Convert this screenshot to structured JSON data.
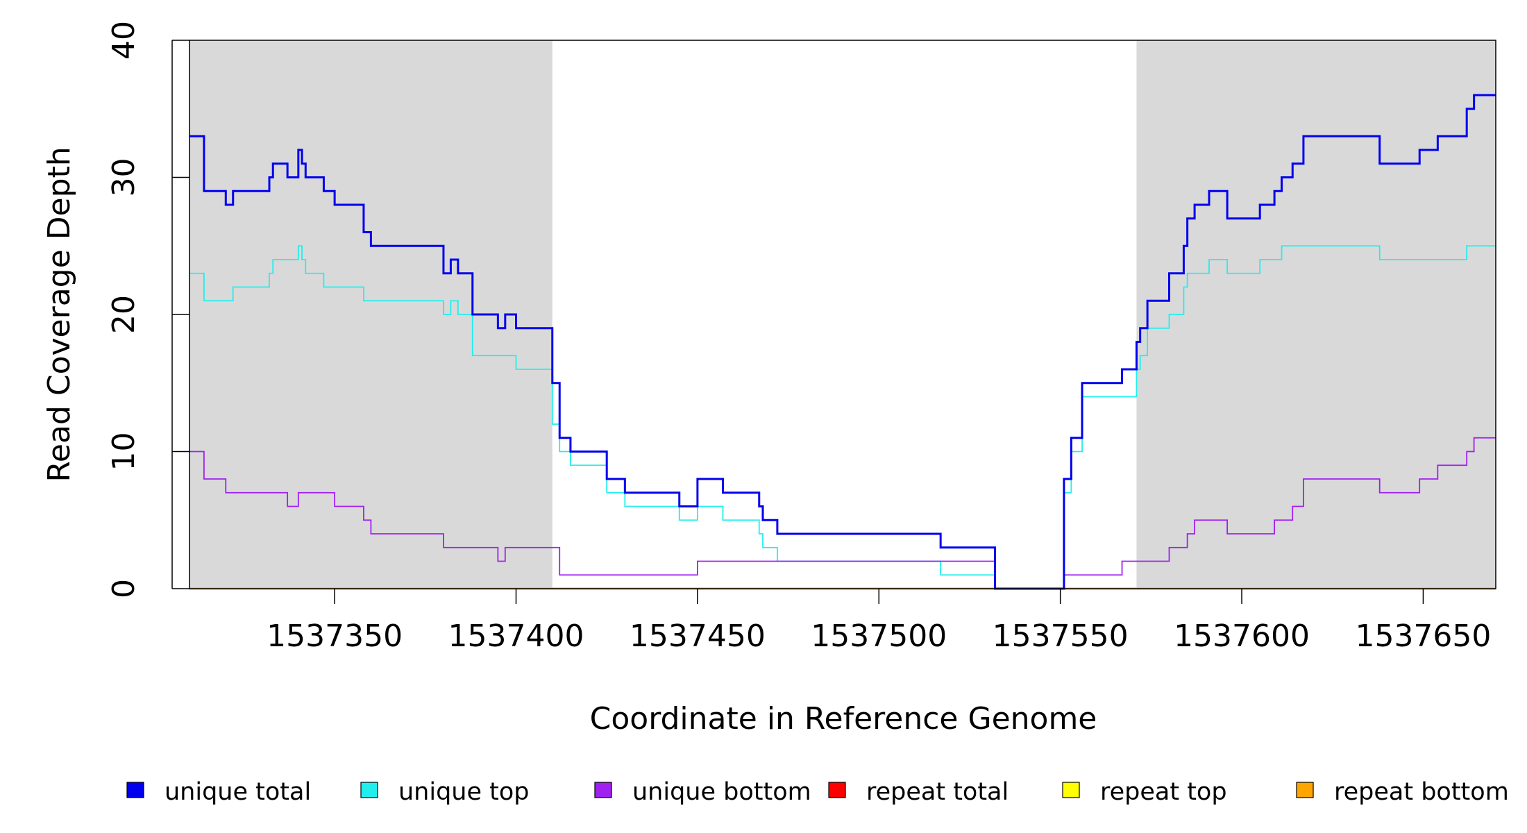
{
  "chart_data": {
    "type": "line",
    "step": true,
    "xlabel": "Coordinate in Reference Genome",
    "ylabel": "Read Coverage Depth",
    "xlim": [
      1537310,
      1537670
    ],
    "ylim": [
      0,
      40
    ],
    "x_ticks": [
      1537350,
      1537400,
      1537450,
      1537500,
      1537550,
      1537600,
      1537650
    ],
    "x_tick_labels": [
      "1537350",
      "1537400",
      "1537450",
      "1537500",
      "1537550",
      "1537600",
      "1537650"
    ],
    "y_ticks": [
      0,
      10,
      20,
      30,
      40
    ],
    "y_tick_labels": [
      "0",
      "10",
      "20",
      "30",
      "40"
    ],
    "shaded_regions": [
      [
        1537310,
        1537410
      ],
      [
        1537571,
        1537670
      ]
    ],
    "shade_color": "#d9d9d9",
    "grid": false,
    "legend_position": "bottom",
    "series": [
      {
        "name": "unique total",
        "color": "#0000ee",
        "points": [
          [
            1537310,
            33
          ],
          [
            1537314,
            29
          ],
          [
            1537320,
            28
          ],
          [
            1537322,
            29
          ],
          [
            1537332,
            30
          ],
          [
            1537333,
            31
          ],
          [
            1537337,
            30
          ],
          [
            1537340,
            32
          ],
          [
            1537341,
            31
          ],
          [
            1537342,
            30
          ],
          [
            1537347,
            29
          ],
          [
            1537350,
            28
          ],
          [
            1537358,
            26
          ],
          [
            1537360,
            25
          ],
          [
            1537380,
            23
          ],
          [
            1537382,
            24
          ],
          [
            1537384,
            23
          ],
          [
            1537388,
            20
          ],
          [
            1537395,
            19
          ],
          [
            1537397,
            20
          ],
          [
            1537400,
            19
          ],
          [
            1537410,
            15
          ],
          [
            1537412,
            11
          ],
          [
            1537415,
            10
          ],
          [
            1537425,
            8
          ],
          [
            1537430,
            7
          ],
          [
            1537445,
            6
          ],
          [
            1537450,
            8
          ],
          [
            1537457,
            7
          ],
          [
            1537467,
            6
          ],
          [
            1537468,
            5
          ],
          [
            1537472,
            4
          ],
          [
            1537517,
            3
          ],
          [
            1537532,
            0
          ],
          [
            1537551,
            8
          ],
          [
            1537553,
            11
          ],
          [
            1537556,
            15
          ],
          [
            1537567,
            16
          ],
          [
            1537571,
            18
          ],
          [
            1537572,
            19
          ],
          [
            1537574,
            21
          ],
          [
            1537580,
            23
          ],
          [
            1537584,
            25
          ],
          [
            1537585,
            27
          ],
          [
            1537587,
            28
          ],
          [
            1537591,
            29
          ],
          [
            1537596,
            27
          ],
          [
            1537605,
            28
          ],
          [
            1537609,
            29
          ],
          [
            1537611,
            30
          ],
          [
            1537614,
            31
          ],
          [
            1537617,
            33
          ],
          [
            1537638,
            31
          ],
          [
            1537649,
            32
          ],
          [
            1537654,
            33
          ],
          [
            1537662,
            35
          ],
          [
            1537664,
            36
          ],
          [
            1537670,
            36
          ]
        ]
      },
      {
        "name": "unique top",
        "color": "#22eeee",
        "points": [
          [
            1537310,
            23
          ],
          [
            1537314,
            21
          ],
          [
            1537322,
            22
          ],
          [
            1537332,
            23
          ],
          [
            1537333,
            24
          ],
          [
            1537340,
            25
          ],
          [
            1537341,
            24
          ],
          [
            1537342,
            23
          ],
          [
            1537347,
            22
          ],
          [
            1537358,
            21
          ],
          [
            1537380,
            20
          ],
          [
            1537382,
            21
          ],
          [
            1537384,
            20
          ],
          [
            1537388,
            17
          ],
          [
            1537400,
            16
          ],
          [
            1537410,
            12
          ],
          [
            1537412,
            10
          ],
          [
            1537415,
            9
          ],
          [
            1537425,
            7
          ],
          [
            1537430,
            6
          ],
          [
            1537445,
            5
          ],
          [
            1537450,
            6
          ],
          [
            1537457,
            5
          ],
          [
            1537467,
            4
          ],
          [
            1537468,
            3
          ],
          [
            1537472,
            2
          ],
          [
            1537517,
            1
          ],
          [
            1537532,
            0
          ],
          [
            1537551,
            7
          ],
          [
            1537553,
            10
          ],
          [
            1537556,
            14
          ],
          [
            1537571,
            16
          ],
          [
            1537572,
            17
          ],
          [
            1537574,
            19
          ],
          [
            1537580,
            20
          ],
          [
            1537584,
            22
          ],
          [
            1537585,
            23
          ],
          [
            1537591,
            24
          ],
          [
            1537596,
            23
          ],
          [
            1537605,
            24
          ],
          [
            1537611,
            25
          ],
          [
            1537638,
            24
          ],
          [
            1537662,
            25
          ],
          [
            1537670,
            25
          ]
        ]
      },
      {
        "name": "unique bottom",
        "color": "#a020f0",
        "points": [
          [
            1537310,
            10
          ],
          [
            1537314,
            8
          ],
          [
            1537320,
            7
          ],
          [
            1537337,
            6
          ],
          [
            1537340,
            7
          ],
          [
            1537350,
            6
          ],
          [
            1537358,
            5
          ],
          [
            1537360,
            4
          ],
          [
            1537380,
            3
          ],
          [
            1537395,
            2
          ],
          [
            1537397,
            3
          ],
          [
            1537412,
            1
          ],
          [
            1537450,
            2
          ],
          [
            1537532,
            0
          ],
          [
            1537551,
            1
          ],
          [
            1537567,
            2
          ],
          [
            1537580,
            3
          ],
          [
            1537585,
            4
          ],
          [
            1537587,
            5
          ],
          [
            1537596,
            4
          ],
          [
            1537609,
            5
          ],
          [
            1537614,
            6
          ],
          [
            1537617,
            8
          ],
          [
            1537638,
            7
          ],
          [
            1537649,
            8
          ],
          [
            1537654,
            9
          ],
          [
            1537662,
            10
          ],
          [
            1537664,
            11
          ],
          [
            1537670,
            11
          ]
        ]
      },
      {
        "name": "repeat total",
        "color": "#ff0000",
        "points": [
          [
            1537310,
            0
          ],
          [
            1537670,
            0
          ]
        ]
      },
      {
        "name": "repeat top",
        "color": "#ffff00",
        "points": [
          [
            1537310,
            0
          ],
          [
            1537670,
            0
          ]
        ]
      },
      {
        "name": "repeat bottom",
        "color": "#ffa500",
        "points": [
          [
            1537310,
            0
          ],
          [
            1537670,
            0
          ]
        ]
      }
    ]
  }
}
